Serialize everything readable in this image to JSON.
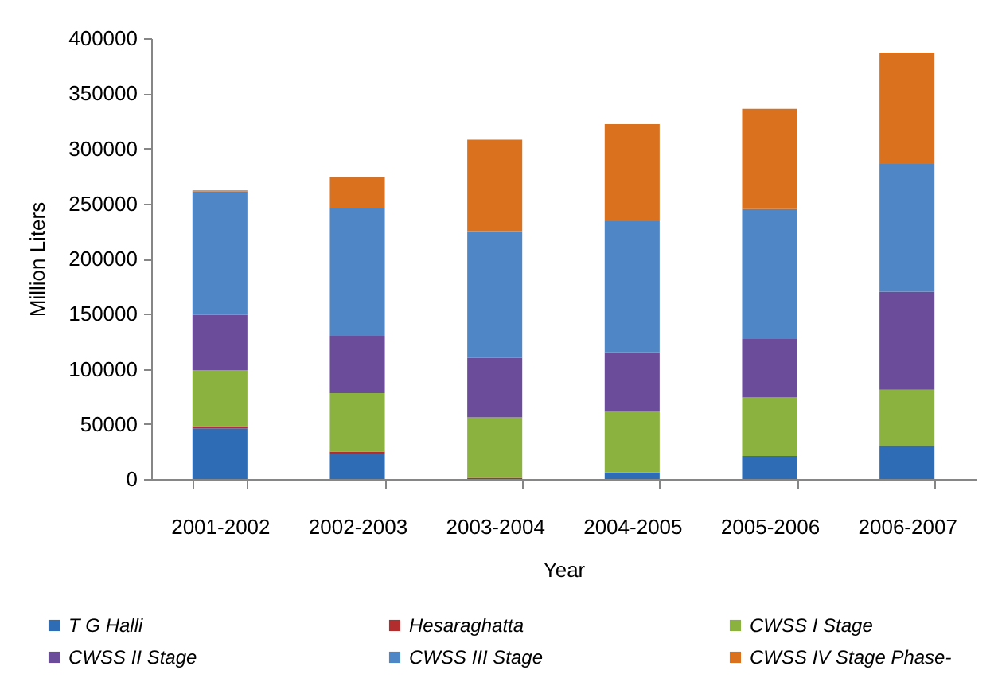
{
  "chart_data": {
    "type": "bar",
    "stacked": true,
    "categories": [
      "2001-2002",
      "2002-2003",
      "2003-2004",
      "2004-2005",
      "2005-2006",
      "2006-2007"
    ],
    "series": [
      {
        "name": "T G Halli",
        "color": "#2e6db5",
        "values": [
          46000,
          23000,
          null,
          6000,
          21000,
          30000
        ]
      },
      {
        "name": "Hesaraghatta",
        "color": "#b22d2d",
        "values": [
          2000,
          2000,
          1000,
          null,
          null,
          null
        ]
      },
      {
        "name": "CWSS I Stage",
        "color": "#8bb13e",
        "values": [
          51000,
          53000,
          55000,
          55000,
          53000,
          51000
        ]
      },
      {
        "name": "CWSS II Stage",
        "color": "#6b4c9a",
        "values": [
          50000,
          52000,
          54000,
          54000,
          53000,
          89000
        ]
      },
      {
        "name": "CWSS III Stage",
        "color": "#4f86c6",
        "values": [
          112000,
          116000,
          115000,
          119000,
          118000,
          116000
        ]
      },
      {
        "name": "CWSS IV Stage Phase-",
        "color": "#d9711f",
        "values": [
          1000,
          28000,
          83000,
          88000,
          91000,
          101000
        ]
      }
    ],
    "xlabel": "Year",
    "ylabel": "Million Liters",
    "ylim": [
      0,
      400000
    ],
    "yticks": [
      0,
      50000,
      100000,
      150000,
      200000,
      250000,
      300000,
      350000,
      400000
    ],
    "grid": false,
    "legend": "bottom"
  }
}
